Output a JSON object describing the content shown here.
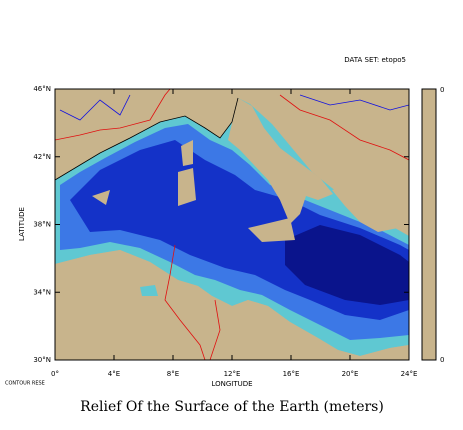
{
  "chart_data": {
    "type": "map",
    "title": "Relief Of the Surface of the Earth (meters)",
    "dataset_label": "DATA SET: etopo5",
    "xlabel": "LONGITUDE",
    "ylabel": "LATITUDE",
    "footnote": "CONTOUR RESE",
    "xlim": [
      0,
      24
    ],
    "ylim": [
      30,
      46
    ],
    "xticks": [
      {
        "value": 0,
        "label": "0°"
      },
      {
        "value": 4,
        "label": "4°E"
      },
      {
        "value": 8,
        "label": "8°E"
      },
      {
        "value": 12,
        "label": "12°E"
      },
      {
        "value": 16,
        "label": "16°E"
      },
      {
        "value": 20,
        "label": "20°E"
      },
      {
        "value": 24,
        "label": "24°E"
      }
    ],
    "yticks": [
      {
        "value": 30,
        "label": "30°N"
      },
      {
        "value": 34,
        "label": "34°N"
      },
      {
        "value": 38,
        "label": "38°N"
      },
      {
        "value": 42,
        "label": "42°N"
      },
      {
        "value": 46,
        "label": "46°N"
      }
    ],
    "colorbar_labels": [
      "0",
      "0"
    ]
  }
}
